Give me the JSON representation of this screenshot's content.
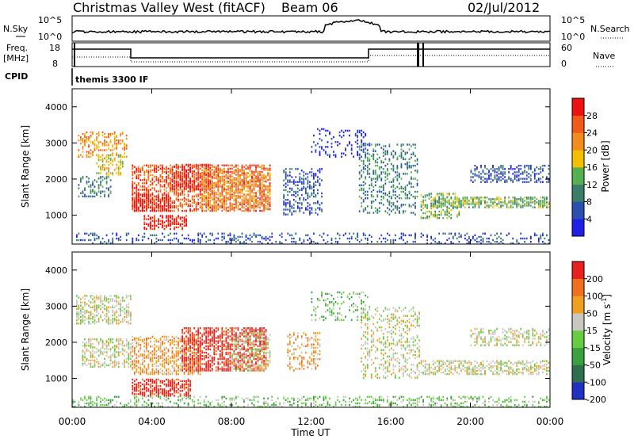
{
  "header": {
    "title": "Christmas Valley West (fitACF)",
    "beam": "Beam 06",
    "date": "02/Jul/2012"
  },
  "top_panels": {
    "nsky_label": "N.Sky",
    "nsearch_label": "N.Search",
    "nsky_ticks": [
      "10^5",
      "10^0"
    ],
    "nsearch_ticks": [
      "10^5",
      "10^0"
    ],
    "freq_label": "Freq.",
    "freq_unit": "[MHz]",
    "freq_ticks": [
      "18",
      "8"
    ],
    "nave_label": "Nave",
    "nave_ticks": [
      "60",
      "0"
    ],
    "cpid_label": "CPID",
    "cpid_value": "themis 3300 IF"
  },
  "chart_data": [
    {
      "type": "heatmap",
      "name": "power",
      "ylabel": "Slant Range [km]",
      "ylim": [
        200,
        4500
      ],
      "yticks": [
        "1000",
        "2000",
        "3000",
        "4000"
      ],
      "colorbar_label": "Power [dB]",
      "colorbar_ticks": [
        "4",
        "8",
        "12",
        "16",
        "20",
        "24",
        "28"
      ],
      "colors": [
        "#1f1fe6",
        "#2a4fb0",
        "#3a7e6a",
        "#56b052",
        "#f2c000",
        "#f28c1c",
        "#f25a1c",
        "#ee1111"
      ],
      "regions": [
        {
          "t0": 0.3,
          "t1": 2.8,
          "r0": 2600,
          "r1": 3300,
          "level": 5,
          "density": 0.45
        },
        {
          "t0": 1.2,
          "t1": 2.6,
          "r0": 2100,
          "r1": 2700,
          "level": 4,
          "density": 0.45
        },
        {
          "t0": 0.3,
          "t1": 2.0,
          "r0": 1500,
          "r1": 2100,
          "level": 2,
          "density": 0.4
        },
        {
          "t0": 3.0,
          "t1": 10.0,
          "r0": 1100,
          "r1": 2400,
          "level": 6,
          "density": 0.55
        },
        {
          "t0": 3.0,
          "t1": 5.0,
          "r0": 1100,
          "r1": 1600,
          "level": 7,
          "density": 0.7
        },
        {
          "t0": 5.0,
          "t1": 7.0,
          "r0": 1700,
          "r1": 2400,
          "level": 7,
          "density": 0.55
        },
        {
          "t0": 3.6,
          "t1": 5.8,
          "r0": 600,
          "r1": 1000,
          "level": 7,
          "density": 0.65
        },
        {
          "t0": 6.5,
          "t1": 10.0,
          "r0": 1200,
          "r1": 2300,
          "level": 5,
          "density": 0.45
        },
        {
          "t0": 10.6,
          "t1": 12.6,
          "r0": 1000,
          "r1": 2300,
          "level": 1,
          "density": 0.35
        },
        {
          "t0": 12.0,
          "t1": 15.0,
          "r0": 2600,
          "r1": 3400,
          "level": 0,
          "density": 0.2
        },
        {
          "t0": 14.4,
          "t1": 17.4,
          "r0": 1000,
          "r1": 3000,
          "level": 2,
          "density": 0.3
        },
        {
          "t0": 17.5,
          "t1": 19.5,
          "r0": 900,
          "r1": 1600,
          "level": 3,
          "density": 0.45
        },
        {
          "t0": 18.0,
          "t1": 24.0,
          "r0": 1200,
          "r1": 1500,
          "level": 3,
          "density": 0.6
        },
        {
          "t0": 20.0,
          "t1": 24.0,
          "r0": 1900,
          "r1": 2400,
          "level": 1,
          "density": 0.4
        },
        {
          "t0": 0.0,
          "t1": 24.0,
          "r0": 200,
          "r1": 500,
          "level": 1,
          "density": 0.25
        }
      ]
    },
    {
      "type": "heatmap",
      "name": "velocity",
      "ylabel": "Slant Range [km]",
      "ylim": [
        200,
        4500
      ],
      "yticks": [
        "1000",
        "2000",
        "3000",
        "4000"
      ],
      "xlabel": "Time UT",
      "xticks": [
        "00:00",
        "04:00",
        "08:00",
        "12:00",
        "16:00",
        "20:00",
        "00:00"
      ],
      "xlim_hours": [
        0,
        24
      ],
      "colorbar_label": "Velocity [m s^-1]",
      "colorbar_ticks": [
        "200",
        "100",
        "50",
        "15",
        "-15",
        "-50",
        "-100",
        "-200"
      ],
      "colors": [
        "#2030c0",
        "#2f6f4f",
        "#3aa040",
        "#66cc44",
        "#c8c8c0",
        "#f0a020",
        "#f07020",
        "#e82020"
      ],
      "regions": [
        {
          "t0": 0.2,
          "t1": 3.0,
          "r0": 2500,
          "r1": 3300,
          "level": 4,
          "density": 0.5
        },
        {
          "t0": 0.5,
          "t1": 3.0,
          "r0": 1300,
          "r1": 2100,
          "level": 4,
          "density": 0.5
        },
        {
          "t0": 3.0,
          "t1": 6.5,
          "r0": 1100,
          "r1": 2200,
          "level": 5,
          "density": 0.55
        },
        {
          "t0": 5.5,
          "t1": 9.8,
          "r0": 1200,
          "r1": 2400,
          "level": 7,
          "density": 0.6
        },
        {
          "t0": 3.0,
          "t1": 6.0,
          "r0": 500,
          "r1": 1000,
          "level": 7,
          "density": 0.65
        },
        {
          "t0": 8.0,
          "t1": 10.0,
          "r0": 1200,
          "r1": 2300,
          "level": 4,
          "density": 0.35
        },
        {
          "t0": 10.8,
          "t1": 12.5,
          "r0": 1200,
          "r1": 2300,
          "level": 5,
          "density": 0.3
        },
        {
          "t0": 12.0,
          "t1": 15.0,
          "r0": 2600,
          "r1": 3400,
          "level": 3,
          "density": 0.2
        },
        {
          "t0": 14.5,
          "t1": 17.5,
          "r0": 1000,
          "r1": 3000,
          "level": 4,
          "density": 0.3
        },
        {
          "t0": 17.5,
          "t1": 24.0,
          "r0": 1100,
          "r1": 1500,
          "level": 4,
          "density": 0.55
        },
        {
          "t0": 20.0,
          "t1": 24.0,
          "r0": 1900,
          "r1": 2400,
          "level": 4,
          "density": 0.4
        },
        {
          "t0": 0.0,
          "t1": 24.0,
          "r0": 200,
          "r1": 500,
          "level": 3,
          "density": 0.3
        }
      ]
    }
  ]
}
